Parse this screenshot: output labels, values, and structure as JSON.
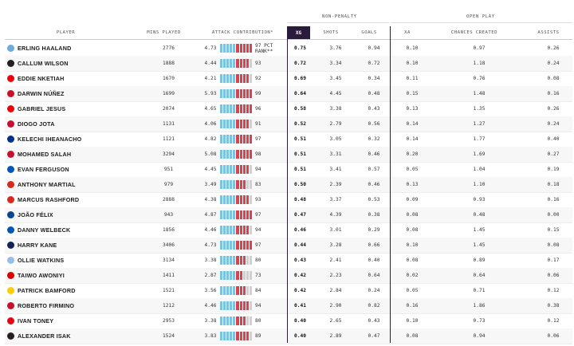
{
  "groups": {
    "nonpenalty": "NON-PENALTY",
    "openplay": "OPEN PLAY"
  },
  "headers": {
    "player": "PLAYER",
    "mins": "MINS PLAYED",
    "attack": "ATTACK CONTRIBUTION*",
    "xg": "XG",
    "shots": "SHOTS",
    "goals": "GOALS",
    "xa": "XA",
    "chances": "CHANCES CREATED",
    "assists": "ASSISTS"
  },
  "pct_label": "97 PCT RANK**",
  "colors": {
    "header_dark": "#2a1b3d",
    "bar_blue": "#7cc3df",
    "bar_red": "#d9434f",
    "bar_empty": "#d0d0d0"
  },
  "players": [
    {
      "name": "Erling Haaland",
      "crest": "#6cabdd",
      "mins": "2776",
      "attack": "4.73",
      "pct": "97",
      "xg": "0.75",
      "shots": "3.76",
      "goals": "0.94",
      "xa": "0.10",
      "chances": "0.97",
      "assists": "0.26"
    },
    {
      "name": "Callum Wilson",
      "crest": "#241f20",
      "mins": "1888",
      "attack": "4.44",
      "pct": "93",
      "xg": "0.72",
      "shots": "3.34",
      "goals": "0.72",
      "xa": "0.10",
      "chances": "1.18",
      "assists": "0.24"
    },
    {
      "name": "Eddie Nketiah",
      "crest": "#ef0107",
      "mins": "1670",
      "attack": "4.21",
      "pct": "92",
      "xg": "0.69",
      "shots": "3.45",
      "goals": "0.34",
      "xa": "0.11",
      "chances": "0.76",
      "assists": "0.08"
    },
    {
      "name": "Darwin Núñez",
      "crest": "#c8102e",
      "mins": "1699",
      "attack": "5.93",
      "pct": "99",
      "xg": "0.64",
      "shots": "4.45",
      "goals": "0.48",
      "xa": "0.15",
      "chances": "1.48",
      "assists": "0.16"
    },
    {
      "name": "Gabriel Jesus",
      "crest": "#ef0107",
      "mins": "2074",
      "attack": "4.65",
      "pct": "96",
      "xg": "0.58",
      "shots": "3.38",
      "goals": "0.43",
      "xa": "0.13",
      "chances": "1.35",
      "assists": "0.26"
    },
    {
      "name": "Diogo Jota",
      "crest": "#c8102e",
      "mins": "1131",
      "attack": "4.06",
      "pct": "91",
      "xg": "0.52",
      "shots": "2.79",
      "goals": "0.56",
      "xa": "0.14",
      "chances": "1.27",
      "assists": "0.24"
    },
    {
      "name": "Kelechi Iheanacho",
      "crest": "#003090",
      "mins": "1121",
      "attack": "4.82",
      "pct": "97",
      "xg": "0.51",
      "shots": "3.05",
      "goals": "0.32",
      "xa": "0.14",
      "chances": "1.77",
      "assists": "0.40"
    },
    {
      "name": "Mohamed Salah",
      "crest": "#c8102e",
      "mins": "3294",
      "attack": "5.08",
      "pct": "98",
      "xg": "0.51",
      "shots": "3.31",
      "goals": "0.46",
      "xa": "0.20",
      "chances": "1.69",
      "assists": "0.27"
    },
    {
      "name": "Evan Ferguson",
      "crest": "#0057b8",
      "mins": "951",
      "attack": "4.45",
      "pct": "94",
      "xg": "0.51",
      "shots": "3.41",
      "goals": "0.57",
      "xa": "0.05",
      "chances": "1.04",
      "assists": "0.19"
    },
    {
      "name": "Anthony Martial",
      "crest": "#da291c",
      "mins": "979",
      "attack": "3.49",
      "pct": "83",
      "xg": "0.50",
      "shots": "2.39",
      "goals": "0.46",
      "xa": "0.13",
      "chances": "1.10",
      "assists": "0.18"
    },
    {
      "name": "Marcus Rashford",
      "crest": "#da291c",
      "mins": "2888",
      "attack": "4.38",
      "pct": "93",
      "xg": "0.48",
      "shots": "3.37",
      "goals": "0.53",
      "xa": "0.09",
      "chances": "0.93",
      "assists": "0.16"
    },
    {
      "name": "João Félix",
      "crest": "#034694",
      "mins": "943",
      "attack": "4.87",
      "pct": "97",
      "xg": "0.47",
      "shots": "4.39",
      "goals": "0.38",
      "xa": "0.08",
      "chances": "0.48",
      "assists": "0.00"
    },
    {
      "name": "Danny Welbeck",
      "crest": "#0057b8",
      "mins": "1856",
      "attack": "4.46",
      "pct": "94",
      "xg": "0.46",
      "shots": "3.01",
      "goals": "0.29",
      "xa": "0.08",
      "chances": "1.45",
      "assists": "0.15"
    },
    {
      "name": "Harry Kane",
      "crest": "#132257",
      "mins": "3406",
      "attack": "4.73",
      "pct": "97",
      "xg": "0.44",
      "shots": "3.28",
      "goals": "0.66",
      "xa": "0.10",
      "chances": "1.45",
      "assists": "0.08"
    },
    {
      "name": "Ollie Watkins",
      "crest": "#95bfe5",
      "mins": "3134",
      "attack": "3.38",
      "pct": "80",
      "xg": "0.43",
      "shots": "2.41",
      "goals": "0.40",
      "xa": "0.08",
      "chances": "0.89",
      "assists": "0.17"
    },
    {
      "name": "Taiwo Awoniyi",
      "crest": "#dd0000",
      "mins": "1411",
      "attack": "2.87",
      "pct": "73",
      "xg": "0.42",
      "shots": "2.23",
      "goals": "0.64",
      "xa": "0.02",
      "chances": "0.64",
      "assists": "0.06"
    },
    {
      "name": "Patrick Bamford",
      "crest": "#ffcd00",
      "mins": "1521",
      "attack": "3.56",
      "pct": "84",
      "xg": "0.42",
      "shots": "2.84",
      "goals": "0.24",
      "xa": "0.05",
      "chances": "0.71",
      "assists": "0.12"
    },
    {
      "name": "Roberto Firmino",
      "crest": "#c8102e",
      "mins": "1212",
      "attack": "4.46",
      "pct": "94",
      "xg": "0.41",
      "shots": "2.90",
      "goals": "0.82",
      "xa": "0.16",
      "chances": "1.86",
      "assists": "0.38"
    },
    {
      "name": "Ivan Toney",
      "crest": "#e30613",
      "mins": "2953",
      "attack": "3.38",
      "pct": "80",
      "xg": "0.40",
      "shots": "2.65",
      "goals": "0.43",
      "xa": "0.10",
      "chances": "0.73",
      "assists": "0.12"
    },
    {
      "name": "Alexander Isak",
      "crest": "#241f20",
      "mins": "1524",
      "attack": "3.83",
      "pct": "89",
      "xg": "0.40",
      "shots": "2.89",
      "goals": "0.47",
      "xa": "0.08",
      "chances": "0.94",
      "assists": "0.06"
    }
  ]
}
